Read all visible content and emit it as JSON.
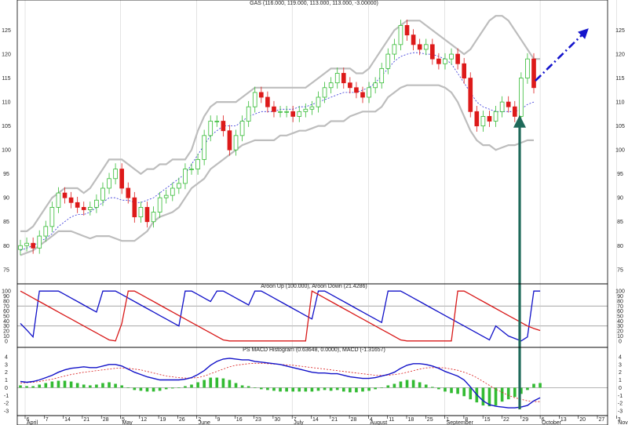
{
  "chart_data": [
    {
      "type": "candlestick",
      "title": "GAS (116.000, 119.000, 113.000, 113.000, -3.00000)",
      "ylim": [
        73,
        130
      ],
      "yticks": [
        75,
        80,
        85,
        90,
        95,
        100,
        105,
        110,
        115,
        120,
        125
      ],
      "overlays": [
        "bollinger-bands",
        "bollinger-middle-dotted"
      ],
      "close_series": [
        80,
        80.5,
        79.5,
        82,
        84,
        88,
        91,
        90,
        89,
        88,
        87.5,
        88,
        89.5,
        92,
        94,
        96,
        92,
        90,
        86,
        88,
        85,
        87,
        90,
        90.5,
        92,
        93,
        96,
        96,
        98,
        103,
        106,
        106,
        104,
        100,
        103,
        106,
        109,
        112,
        111,
        109,
        108,
        108,
        108,
        107,
        108,
        108.5,
        109,
        111,
        113,
        114,
        116,
        114,
        113,
        112,
        111,
        113,
        114,
        117,
        120,
        122,
        126,
        124,
        122,
        121,
        122,
        119,
        118,
        119,
        120,
        118,
        115,
        108,
        105,
        107,
        106,
        108,
        110,
        109,
        107,
        115,
        119,
        113
      ],
      "upper_band": [
        83,
        83,
        84,
        86,
        88,
        90,
        91,
        92,
        92,
        92,
        91,
        92,
        94,
        96,
        98,
        98,
        98,
        97,
        96,
        95,
        96,
        96,
        97,
        97,
        98,
        98,
        98,
        100,
        104,
        107,
        109,
        110,
        110,
        110,
        110,
        111,
        112,
        113,
        113,
        113,
        113,
        113,
        113,
        113,
        113,
        113,
        114,
        115,
        116,
        117,
        117,
        117,
        117,
        116,
        116,
        117,
        119,
        121,
        123,
        125,
        126,
        127,
        127,
        127,
        126,
        125,
        124,
        123,
        122,
        121,
        120,
        121,
        123,
        125,
        127,
        128,
        128,
        127,
        125,
        123,
        121,
        119,
        119
      ],
      "middle_band": [
        79,
        79.5,
        80,
        80.8,
        81.5,
        82.5,
        84,
        85,
        86,
        86.5,
        86.5,
        87,
        88,
        89,
        90,
        90,
        89.5,
        89.5,
        89,
        89,
        89.5,
        90,
        91,
        92,
        93,
        94,
        95,
        97,
        99,
        101,
        103,
        104,
        105,
        105,
        105,
        106,
        107,
        107.5,
        108,
        108,
        108,
        108.5,
        108.5,
        108.5,
        109,
        109,
        109.5,
        110,
        110.5,
        111,
        111.5,
        112,
        112,
        112,
        112.5,
        113,
        114,
        115.5,
        117,
        118.5,
        119.5,
        120,
        120.3,
        120.3,
        120,
        120,
        119.5,
        119,
        118,
        116,
        114,
        112,
        110,
        109,
        108.5,
        108,
        108,
        108,
        108,
        108.5,
        109.5,
        110
      ],
      "lower_band": [
        78,
        78.5,
        79,
        80,
        81,
        82,
        83,
        83,
        83,
        82.5,
        82,
        81.5,
        82,
        82,
        82,
        81.5,
        81,
        81,
        81,
        82,
        83,
        85,
        86,
        86.5,
        87,
        88,
        90,
        92,
        93,
        94,
        96,
        97,
        98,
        99,
        100,
        101,
        101.5,
        102,
        102,
        102,
        102,
        103,
        103,
        103.5,
        104,
        104,
        104.5,
        105,
        105,
        106,
        106,
        106,
        107,
        107.5,
        108,
        108,
        108,
        109,
        111,
        112,
        113,
        113.5,
        113.5,
        113.5,
        113.5,
        113.5,
        113.5,
        113,
        112,
        110,
        107,
        104,
        102,
        101,
        101,
        100,
        100.5,
        101,
        101,
        101.5,
        102,
        102
      ]
    },
    {
      "type": "line",
      "title": "Aroon Up (100.000), Aroon Down (21.4286)",
      "ylim": [
        -5,
        105
      ],
      "yticks": [
        0,
        10,
        20,
        30,
        40,
        50,
        60,
        70,
        80,
        90,
        100
      ],
      "series": [
        {
          "name": "Aroon Up",
          "color": "#1010c8",
          "values": [
            35,
            22,
            8,
            100,
            100,
            100,
            100,
            93,
            86,
            79,
            72,
            65,
            58,
            100,
            100,
            100,
            93,
            86,
            79,
            72,
            65,
            58,
            51,
            44,
            37,
            30,
            100,
            100,
            93,
            86,
            79,
            100,
            100,
            93,
            86,
            79,
            72,
            100,
            100,
            93,
            86,
            79,
            72,
            65,
            58,
            51,
            44,
            100,
            100,
            93,
            86,
            79,
            72,
            65,
            58,
            51,
            44,
            37,
            100,
            100,
            100,
            93,
            86,
            79,
            72,
            65,
            58,
            51,
            44,
            37,
            30,
            23,
            16,
            9,
            2,
            30,
            20,
            10,
            5,
            0,
            8,
            100,
            100
          ]
        },
        {
          "name": "Aroon Down",
          "color": "#d81818",
          "values": [
            100,
            93,
            86,
            79,
            72,
            65,
            58,
            51,
            44,
            37,
            30,
            23,
            16,
            9,
            2,
            0,
            35,
            100,
            100,
            93,
            86,
            79,
            72,
            65,
            58,
            51,
            44,
            37,
            30,
            23,
            16,
            9,
            2,
            0,
            0,
            0,
            0,
            0,
            0,
            0,
            0,
            0,
            0,
            0,
            0,
            0,
            100,
            93,
            86,
            79,
            72,
            65,
            58,
            51,
            44,
            37,
            30,
            23,
            16,
            9,
            2,
            0,
            0,
            0,
            0,
            0,
            0,
            0,
            0,
            100,
            100,
            93,
            86,
            79,
            72,
            65,
            58,
            51,
            44,
            37,
            30,
            25,
            21
          ]
        }
      ],
      "reference_lines": [
        70,
        30
      ]
    },
    {
      "type": "line+histogram",
      "title": "PS MACD Histogram (0.63648, 0.0000), MACD (-1.31657)",
      "ylim": [
        -3.2,
        4.5
      ],
      "yticks": [
        -3,
        -2,
        -1,
        0,
        1,
        2,
        3,
        4
      ],
      "series": [
        {
          "name": "MACD",
          "color": "#1010c8",
          "values": [
            0.8,
            0.7,
            0.8,
            1.0,
            1.3,
            1.6,
            2.0,
            2.3,
            2.5,
            2.6,
            2.7,
            2.6,
            2.6,
            2.8,
            3.0,
            3.0,
            2.8,
            2.4,
            2.0,
            1.7,
            1.4,
            1.2,
            1.0,
            1.0,
            1.0,
            1.0,
            1.1,
            1.3,
            1.7,
            2.2,
            2.9,
            3.4,
            3.7,
            3.8,
            3.7,
            3.6,
            3.6,
            3.4,
            3.3,
            3.2,
            3.1,
            3.0,
            2.8,
            2.6,
            2.4,
            2.2,
            2.0,
            1.9,
            1.9,
            1.8,
            1.8,
            1.6,
            1.4,
            1.3,
            1.2,
            1.2,
            1.3,
            1.5,
            1.7,
            2.0,
            2.5,
            2.9,
            3.1,
            3.1,
            3.0,
            2.8,
            2.5,
            2.1,
            1.8,
            1.5,
            1.0,
            0.1,
            -0.9,
            -1.7,
            -2.2,
            -2.4,
            -2.5,
            -2.6,
            -2.6,
            -2.5,
            -2.3,
            -1.7,
            -1.3
          ]
        },
        {
          "name": "Signal",
          "color": "#d81818",
          "values": [
            0.6,
            0.65,
            0.7,
            0.8,
            0.95,
            1.1,
            1.3,
            1.5,
            1.7,
            1.85,
            2.0,
            2.1,
            2.2,
            2.3,
            2.4,
            2.5,
            2.55,
            2.5,
            2.4,
            2.3,
            2.1,
            1.9,
            1.7,
            1.5,
            1.4,
            1.3,
            1.25,
            1.25,
            1.3,
            1.5,
            1.8,
            2.1,
            2.4,
            2.7,
            2.9,
            3.0,
            3.1,
            3.15,
            3.15,
            3.1,
            3.05,
            3.0,
            2.95,
            2.9,
            2.8,
            2.7,
            2.6,
            2.5,
            2.4,
            2.3,
            2.2,
            2.1,
            2.0,
            1.9,
            1.8,
            1.7,
            1.6,
            1.6,
            1.6,
            1.7,
            1.8,
            2.0,
            2.2,
            2.4,
            2.55,
            2.6,
            2.6,
            2.55,
            2.4,
            2.25,
            2.0,
            1.7,
            1.3,
            0.8,
            0.3,
            -0.2,
            -0.6,
            -1.0,
            -1.3,
            -1.5,
            -1.7,
            -1.8,
            -1.8
          ]
        },
        {
          "name": "Histogram",
          "color": "#33bb33",
          "values": [
            0.3,
            0.2,
            0.2,
            0.4,
            0.6,
            0.8,
            0.9,
            0.9,
            0.8,
            0.6,
            0.4,
            0.3,
            0.4,
            0.6,
            0.7,
            0.5,
            0.3,
            0,
            -0.3,
            -0.4,
            -0.5,
            -0.5,
            -0.4,
            -0.2,
            -0.1,
            0,
            0.2,
            0.4,
            0.7,
            1.0,
            1.3,
            1.3,
            1.2,
            1.0,
            0.6,
            0.3,
            0.2,
            0,
            -0.2,
            -0.3,
            -0.4,
            -0.5,
            -0.5,
            -0.5,
            -0.5,
            -0.5,
            -0.5,
            -0.4,
            -0.3,
            -0.4,
            -0.3,
            -0.5,
            -0.6,
            -0.6,
            -0.5,
            -0.4,
            -0.2,
            0,
            0.3,
            0.5,
            0.8,
            1.0,
            1.0,
            0.7,
            0.4,
            0.1,
            -0.2,
            -0.5,
            -0.7,
            -0.8,
            -1.1,
            -1.5,
            -1.9,
            -2.3,
            -2.4,
            -2.3,
            -1.8,
            -1.5,
            -1.2,
            -0.8,
            -0.3,
            0.5,
            0.6
          ]
        }
      ]
    }
  ],
  "x_axis": {
    "day_labels": [
      "6",
      "7",
      "14",
      "21",
      "28",
      "5",
      "12",
      "19",
      "26",
      "2",
      "9",
      "16",
      "23",
      "30",
      "7",
      "14",
      "21",
      "28",
      "4",
      "11",
      "18",
      "25",
      "1",
      "8",
      "15",
      "22",
      "29",
      "6",
      "13",
      "20",
      "27",
      "3"
    ],
    "month_labels": [
      "April",
      "May",
      "June",
      "July",
      "August",
      "September",
      "October",
      "November"
    ]
  },
  "annotations": {
    "forecast_arrow_color": "#1414cc",
    "vertical_marker_color": "#1f6a5a"
  },
  "colors": {
    "bullish": "#33bb33",
    "bearish": "#dd1a1a",
    "bands": "#bdbdbd",
    "middle_band": "#3030d8",
    "grid": "#c8c8c8",
    "panel_border": "#000000"
  }
}
